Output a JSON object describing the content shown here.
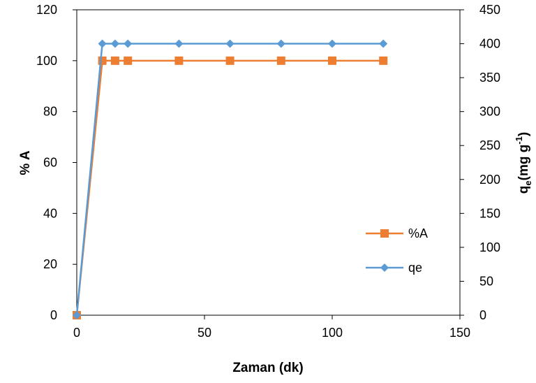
{
  "chart_data": {
    "type": "line",
    "title": "",
    "xlabel": "Zaman (dk)",
    "ylabel_left": "% A",
    "ylabel_right": {
      "base": "q",
      "sub": "e",
      "unit": "(mg g",
      "sup": "-1",
      "close": ")"
    },
    "xlim": [
      0,
      150
    ],
    "ylim_left": [
      0,
      120
    ],
    "ylim_right": [
      0,
      450
    ],
    "x_ticks": [
      0,
      50,
      100,
      150
    ],
    "y_left_ticks": [
      0,
      20,
      40,
      60,
      80,
      100,
      120
    ],
    "y_right_ticks": [
      0,
      50,
      100,
      150,
      200,
      250,
      300,
      350,
      400,
      450
    ],
    "grid": false,
    "legend_position": "right",
    "series": [
      {
        "name": "%A",
        "axis": "left",
        "color": "#ED7D31",
        "marker": "square",
        "x": [
          0,
          10,
          15,
          20,
          40,
          60,
          80,
          100,
          120
        ],
        "y": [
          0,
          100,
          100,
          100,
          100,
          100,
          100,
          100,
          100
        ]
      },
      {
        "name": "qe",
        "axis": "right",
        "color": "#5B9BD5",
        "marker": "diamond",
        "x": [
          0,
          10,
          15,
          20,
          40,
          60,
          80,
          100,
          120
        ],
        "y": [
          0,
          400,
          400,
          400,
          400,
          400,
          400,
          400,
          400
        ]
      }
    ]
  }
}
